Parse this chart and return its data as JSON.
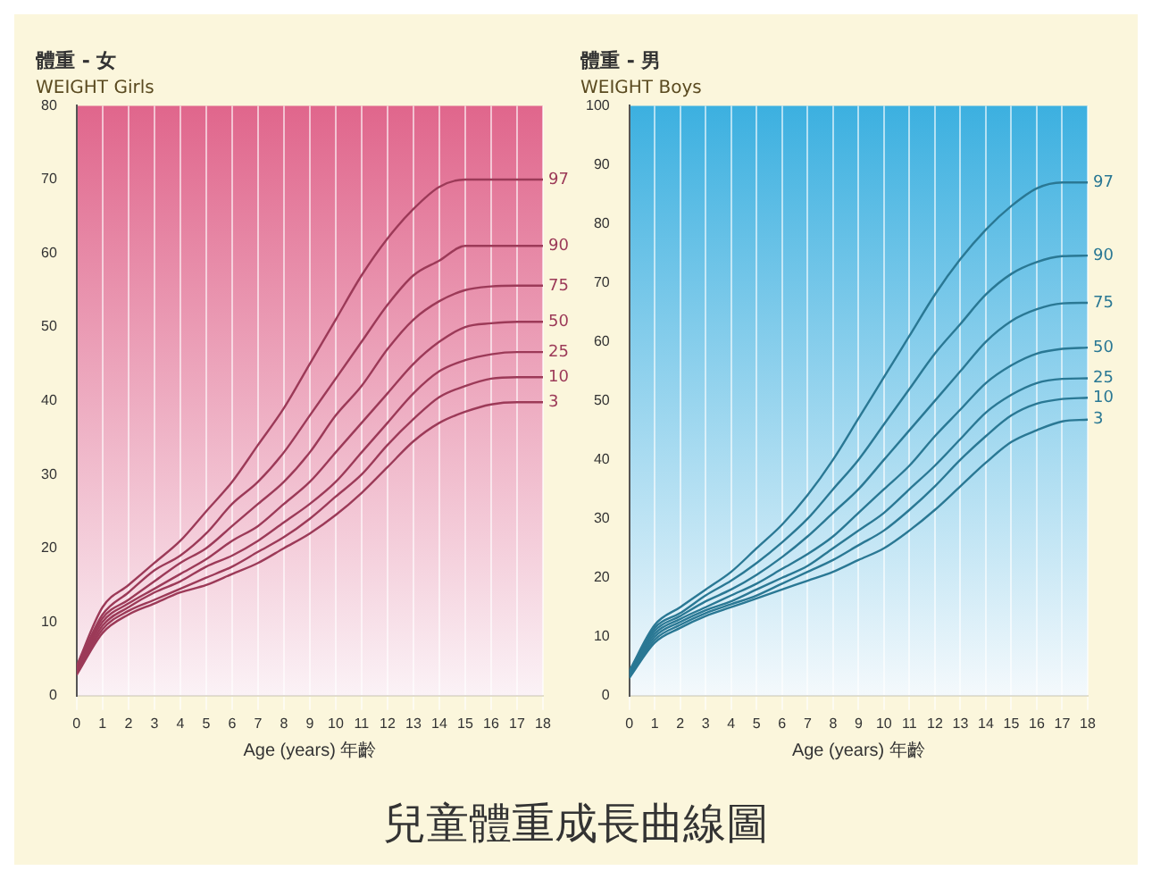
{
  "chart_data": [
    {
      "type": "line",
      "title": "體重 - 女",
      "subtitle": "WEIGHT Girls",
      "xlabel": "Age (years) 年齡",
      "x": [
        0,
        1,
        2,
        3,
        4,
        5,
        6,
        7,
        8,
        9,
        10,
        11,
        12,
        13,
        14,
        15,
        16,
        17,
        18
      ],
      "xlim": [
        0,
        18
      ],
      "xticks": [
        0,
        1,
        2,
        3,
        4,
        5,
        6,
        7,
        8,
        9,
        10,
        11,
        12,
        13,
        14,
        15,
        16,
        17,
        18
      ],
      "ylim": [
        0,
        80
      ],
      "yticks": [
        0,
        10,
        20,
        30,
        40,
        50,
        60,
        70,
        80
      ],
      "grid": "x",
      "marker": "none",
      "line_style": "solid",
      "series": [
        {
          "name": "97",
          "color": "#9c3a58",
          "values": [
            4,
            12,
            15,
            18,
            21,
            25,
            29,
            34,
            39,
            45,
            51,
            57,
            62,
            66,
            69,
            70,
            70,
            70,
            70
          ]
        },
        {
          "name": "90",
          "color": "#9c3a58",
          "values": [
            3.8,
            11,
            14,
            17,
            19,
            22,
            26,
            29,
            33,
            38,
            43,
            48,
            53,
            57,
            59,
            61,
            61,
            61,
            61
          ]
        },
        {
          "name": "75",
          "color": "#9c3a58",
          "values": [
            3.6,
            10.5,
            13,
            15.5,
            18,
            20,
            23,
            26,
            29,
            33,
            38,
            42,
            47,
            51,
            53.5,
            55,
            55.5,
            55.6,
            55.6
          ]
        },
        {
          "name": "50",
          "color": "#9c3a58",
          "values": [
            3.4,
            10,
            12.5,
            14.5,
            16.5,
            18.5,
            21,
            23,
            26,
            29,
            33,
            37,
            41,
            45,
            48,
            50,
            50.5,
            50.7,
            50.7
          ]
        },
        {
          "name": "25",
          "color": "#9c3a58",
          "values": [
            3.2,
            9.5,
            12,
            14,
            15.5,
            17.5,
            19,
            21,
            23.5,
            26,
            29,
            33,
            37,
            41,
            44,
            45.5,
            46.3,
            46.6,
            46.6
          ]
        },
        {
          "name": "10",
          "color": "#9c3a58",
          "values": [
            3,
            9,
            11.5,
            13,
            14.5,
            16,
            17.5,
            19.5,
            21.5,
            24,
            27,
            30,
            34,
            37.5,
            40.5,
            42,
            43,
            43.2,
            43.2
          ]
        },
        {
          "name": "3",
          "color": "#9c3a58",
          "values": [
            2.8,
            8.5,
            11,
            12.5,
            14,
            15,
            16.5,
            18,
            20,
            22,
            24.5,
            27.5,
            31,
            34.5,
            37,
            38.5,
            39.5,
            39.8,
            39.8
          ]
        }
      ]
    },
    {
      "type": "line",
      "title": "體重 - 男",
      "subtitle": "WEIGHT Boys",
      "xlabel": "Age (years) 年齡",
      "x": [
        0,
        1,
        2,
        3,
        4,
        5,
        6,
        7,
        8,
        9,
        10,
        11,
        12,
        13,
        14,
        15,
        16,
        17,
        18
      ],
      "xlim": [
        0,
        18
      ],
      "xticks": [
        0,
        1,
        2,
        3,
        4,
        5,
        6,
        7,
        8,
        9,
        10,
        11,
        12,
        13,
        14,
        15,
        16,
        17,
        18
      ],
      "ylim": [
        0,
        100
      ],
      "yticks": [
        0,
        10,
        20,
        30,
        40,
        50,
        60,
        70,
        80,
        90,
        100
      ],
      "grid": "x",
      "marker": "none",
      "line_style": "solid",
      "series": [
        {
          "name": "97",
          "color": "#2a7894",
          "values": [
            4.2,
            12,
            15,
            18,
            21,
            25,
            29,
            34,
            40,
            47,
            54,
            61,
            68,
            74,
            79,
            83,
            86,
            87,
            87
          ]
        },
        {
          "name": "90",
          "color": "#2a7894",
          "values": [
            4,
            11.5,
            14,
            17,
            19.5,
            22.5,
            26,
            30,
            35,
            40,
            46,
            52,
            58,
            63,
            68,
            71.5,
            73.5,
            74.5,
            74.6
          ]
        },
        {
          "name": "75",
          "color": "#2a7894",
          "values": [
            3.8,
            11,
            13.5,
            16,
            18,
            20.5,
            23.5,
            27,
            31,
            35,
            40,
            45,
            50,
            55,
            60,
            63.5,
            65.5,
            66.5,
            66.6
          ]
        },
        {
          "name": "50",
          "color": "#2a7894",
          "values": [
            3.6,
            10.5,
            13,
            15,
            17,
            19,
            21.5,
            24,
            27,
            31,
            35,
            39,
            44,
            48.5,
            53,
            56,
            58,
            58.8,
            59
          ]
        },
        {
          "name": "25",
          "color": "#2a7894",
          "values": [
            3.4,
            10,
            12.5,
            14.5,
            16,
            18,
            20,
            22,
            25,
            28,
            31,
            35,
            39,
            43.5,
            48,
            51,
            53,
            53.7,
            53.8
          ]
        },
        {
          "name": "10",
          "color": "#2a7894",
          "values": [
            3.2,
            9.5,
            12,
            14,
            15.5,
            17,
            19,
            21,
            23,
            25.5,
            28,
            31.5,
            35.5,
            40,
            44,
            47.5,
            49.5,
            50.3,
            50.5
          ]
        },
        {
          "name": "3",
          "color": "#2a7894",
          "values": [
            3,
            9,
            11.5,
            13.5,
            15,
            16.5,
            18,
            19.5,
            21,
            23,
            25,
            28,
            31.5,
            35.5,
            39.5,
            43,
            45,
            46.5,
            46.8
          ]
        }
      ]
    },
    {
      "type": "other",
      "title": "兒童體重成長曲線圖"
    }
  ]
}
